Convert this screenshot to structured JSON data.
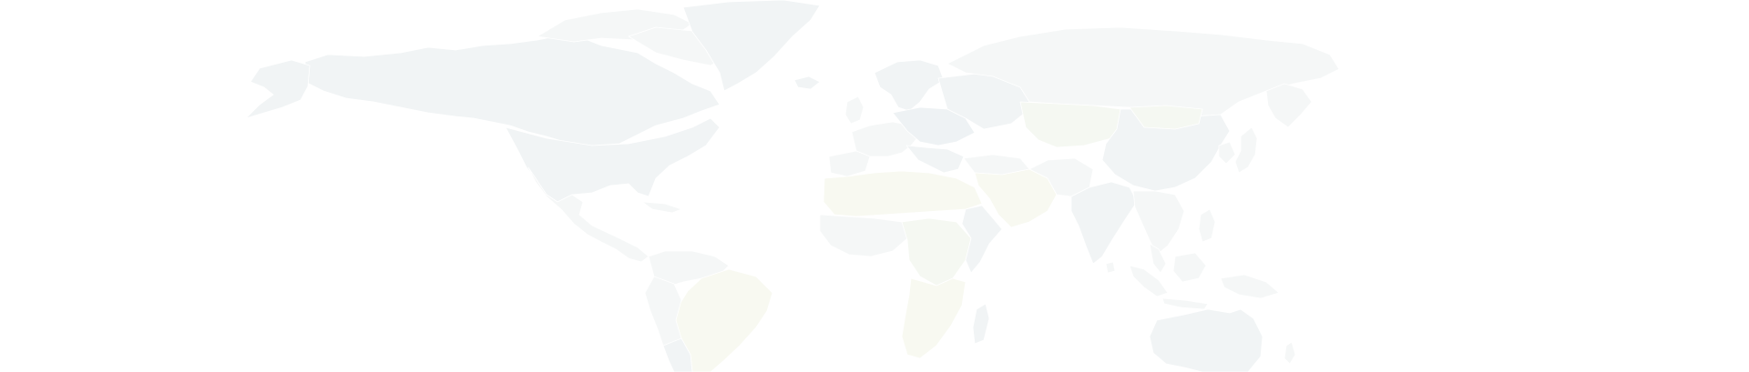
{
  "map": {
    "background": "#ffffff",
    "colors": {
      "land_default": "#f1f4f5",
      "land_light": "#f5f7f7",
      "land_tint_green": "#f5f8f2",
      "land_tint_yellow": "#f8f9f1",
      "land_tint_blue": "#eef2f4"
    },
    "labels": []
  }
}
